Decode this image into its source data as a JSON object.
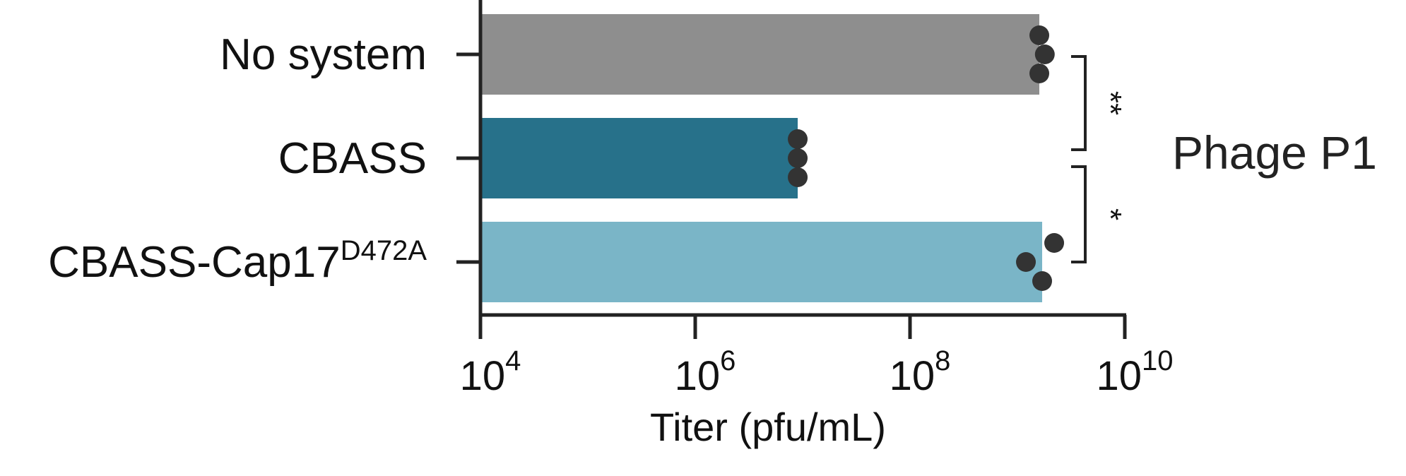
{
  "chart_data": {
    "type": "bar",
    "orientation": "horizontal",
    "categories": [
      {
        "label": "No system",
        "superscript": ""
      },
      {
        "label": "CBASS",
        "superscript": ""
      },
      {
        "label": "CBASS-Cap17",
        "superscript": "D472A"
      }
    ],
    "values": [
      1600000000.0,
      9000000.0,
      1700000000.0
    ],
    "replicates": [
      [
        1600000000.0,
        1800000000.0,
        1600000000.0
      ],
      [
        9000000.0,
        9000000.0,
        9000000.0
      ],
      [
        2200000000.0,
        1200000000.0,
        1700000000.0
      ]
    ],
    "bar_colors": [
      "#8e8e8e",
      "#27718a",
      "#7ab5c7"
    ],
    "point_color": "#333333",
    "xscale": "log",
    "xlim": [
      10000,
      10000000000
    ],
    "xticks": [
      {
        "value": 10000,
        "base": "10",
        "exp": "4"
      },
      {
        "value": 1000000,
        "base": "10",
        "exp": "6"
      },
      {
        "value": 100000000,
        "base": "10",
        "exp": "8"
      },
      {
        "value": 10000000000,
        "base": "10",
        "exp": "10"
      }
    ],
    "xlabel": "Titer (pfu/mL)",
    "panel_label": "Phage P1",
    "significance": [
      {
        "between": [
          0,
          1
        ],
        "label": "**"
      },
      {
        "between": [
          1,
          2
        ],
        "label": "*"
      }
    ],
    "grid": false
  }
}
